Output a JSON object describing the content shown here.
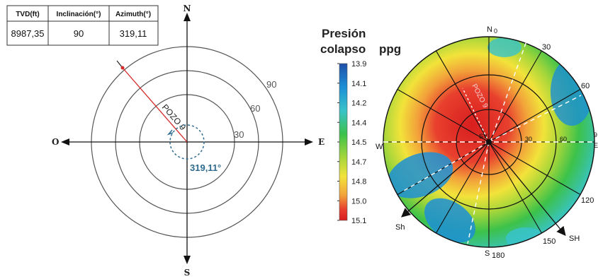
{
  "table": {
    "headers": [
      "TVD(ft)",
      "Inclinación(°)",
      "Azimuth(°)"
    ],
    "values": [
      "8987,35",
      "90",
      "319,11"
    ]
  },
  "compass": {
    "north": "N",
    "south": "S",
    "east": "E",
    "west": "O",
    "rings": [
      "30",
      "60",
      "90"
    ],
    "well_label": "POZO 9",
    "azimuth_label": "319,11°"
  },
  "legend": {
    "title_line1": "Presión",
    "title_line2": "colapso",
    "unit": "ppg",
    "ticks": [
      "13.9",
      "14.1",
      "14.2",
      "14.4",
      "14.5",
      "14.7",
      "14.8",
      "15.0",
      "15.1"
    ]
  },
  "polar": {
    "north": "N",
    "north_value": "0",
    "south": "S",
    "south_value": "180",
    "west": "W",
    "east": "E",
    "angles": [
      "30",
      "60",
      "120",
      "150"
    ],
    "east_cut": "9",
    "center": "SV",
    "inner_ticks": [
      "30",
      "60"
    ],
    "sh_min": "Sh",
    "sh_max": "SH",
    "well_label": "POZO 9"
  },
  "colors": {
    "scale": [
      "#1f4fa8",
      "#1d8fd6",
      "#39c3c9",
      "#3cc24a",
      "#a6d63a",
      "#f2e33a",
      "#f2a23a",
      "#e8402e",
      "#d81e1e"
    ],
    "well_line": "#d42a2a",
    "azimuth_text": "#2f6b8f"
  }
}
